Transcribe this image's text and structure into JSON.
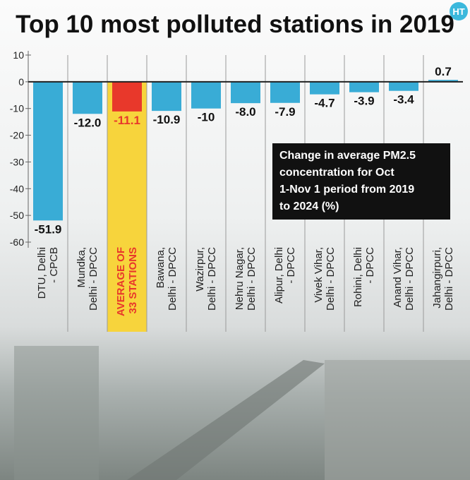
{
  "chart_data": {
    "type": "bar",
    "title": "Top 10 most polluted stations in 2019",
    "logo": "HT",
    "categories": [
      "DTU, Delhi\n- CPCB",
      "Mundka,\nDelhi - DPCC",
      "AVERAGE OF\n33 STATIONS",
      "Bawana,\nDelhi - DPCC",
      "Wazirpur,\nDelhi - DPCC",
      "Nehru Nagar,\nDelhi - DPCC",
      "Alipur, Delhi\n- DPCC",
      "Vivek Vihar,\nDelhi - DPCC",
      "Rohini, Delhi\n- DPCC",
      "Anand Vihar,\nDelhi - DPCC",
      "Jahangirpuri,\nDelhi - DPCC"
    ],
    "values": [
      -51.9,
      -12.0,
      -11.1,
      -10.9,
      -10,
      -8.0,
      -7.9,
      -4.7,
      -3.9,
      -3.4,
      0.7
    ],
    "value_labels": [
      "-51.9",
      "-12.0",
      "-11.1",
      "-10.9",
      "-10",
      "-8.0",
      "-7.9",
      "-4.7",
      "-3.9",
      "-3.4",
      "0.7"
    ],
    "colors": [
      "#39acd6",
      "#39acd6",
      "#e8382b",
      "#39acd6",
      "#39acd6",
      "#39acd6",
      "#39acd6",
      "#39acd6",
      "#39acd6",
      "#39acd6",
      "#39acd6"
    ],
    "highlight_index": 2,
    "highlight_color": "#f7d43c",
    "highlight_text_color": "#e8382b",
    "annotation": "Change in average PM2.5\nconcentration for Oct\n1-Nov 1 period from 2019\nto 2024 (%)",
    "ylim": [
      -60,
      10
    ],
    "yticks": [
      10,
      0,
      -10,
      -20,
      -30,
      -40,
      -50,
      -60
    ]
  }
}
